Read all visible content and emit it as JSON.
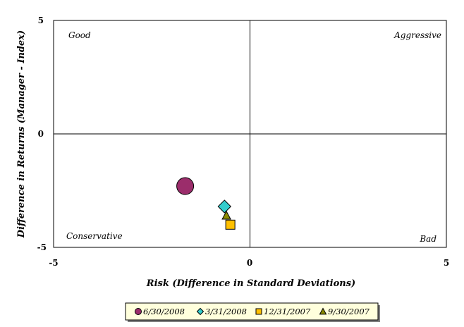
{
  "chart_data": {
    "type": "scatter",
    "title": "",
    "xlabel": "Risk (Difference in Standard Deviations)",
    "ylabel": "Difference in Returns (Manager - Index)",
    "xlim": [
      -5,
      5
    ],
    "ylim": [
      -5,
      5
    ],
    "x_ticks": [
      "-5",
      "0",
      "5"
    ],
    "y_ticks": [
      "5",
      "0",
      "-5"
    ],
    "grid": false,
    "quadrant_labels": {
      "top_left": "Good",
      "top_right": "Aggressive",
      "bottom_left": "Conservative",
      "bottom_right": "Bad"
    },
    "legend_position": "bottom",
    "series": [
      {
        "name": "6/30/2008",
        "marker": "circle",
        "color": "#9b2d6b",
        "x": -1.65,
        "y": -2.3
      },
      {
        "name": "3/31/2008",
        "marker": "diamond",
        "color": "#33cccc",
        "x": -0.65,
        "y": -3.2
      },
      {
        "name": "12/31/2007",
        "marker": "square",
        "color": "#ffc000",
        "x": -0.5,
        "y": -4.0
      },
      {
        "name": "9/30/2007",
        "marker": "triangle",
        "color": "#8b8b00",
        "x": -0.6,
        "y": -3.6
      }
    ]
  }
}
